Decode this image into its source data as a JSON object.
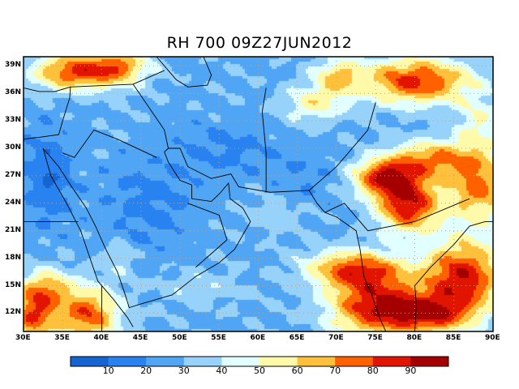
{
  "title": "RH 700 09Z27JUN2012",
  "variable": "RH",
  "level": "700",
  "time": "09Z27JUN2012",
  "map": {
    "lon_range": [
      30,
      90
    ],
    "lat_range": [
      10,
      40
    ],
    "lat_labels": [
      "39N",
      "36N",
      "33N",
      "30N",
      "27N",
      "24N",
      "21N",
      "18N",
      "15N",
      "12N"
    ],
    "lat_values": [
      39,
      36,
      33,
      30,
      27,
      24,
      21,
      18,
      15,
      12
    ],
    "lon_labels": [
      "30E",
      "35E",
      "40E",
      "45E",
      "50E",
      "55E",
      "60E",
      "65E",
      "70E",
      "75E",
      "80E",
      "85E",
      "90E"
    ],
    "lon_values": [
      30,
      35,
      40,
      45,
      50,
      55,
      60,
      65,
      70,
      75,
      80,
      85,
      90
    ],
    "gridlines": true
  },
  "colorbar": {
    "labels": [
      "10",
      "20",
      "30",
      "40",
      "50",
      "60",
      "70",
      "80",
      "90"
    ],
    "colors": [
      "#1464d2",
      "#2882f0",
      "#50a5f5",
      "#96d2fa",
      "#e1ffff",
      "#fffaaa",
      "#ffc03c",
      "#ff6000",
      "#e11400",
      "#a50000"
    ]
  }
}
